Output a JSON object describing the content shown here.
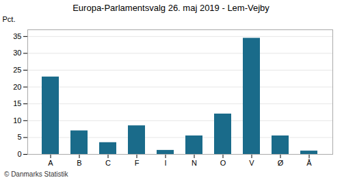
{
  "chart_data": {
    "type": "bar",
    "title": "Europa-Parlamentsvalg 26. maj 2019 - Lem-Vejby",
    "categories": [
      "A",
      "B",
      "C",
      "F",
      "I",
      "N",
      "O",
      "V",
      "Ø",
      "Å"
    ],
    "values": [
      23.0,
      7.0,
      3.5,
      8.5,
      1.2,
      5.5,
      12.0,
      34.5,
      5.5,
      1.0
    ],
    "color": "#1a6b8a",
    "ylabel": "Pct.",
    "ylim": [
      0,
      37
    ],
    "yticks": [
      0,
      5,
      10,
      15,
      20,
      25,
      30,
      35
    ],
    "grid": true,
    "caption": "© Danmarks Statistik"
  }
}
